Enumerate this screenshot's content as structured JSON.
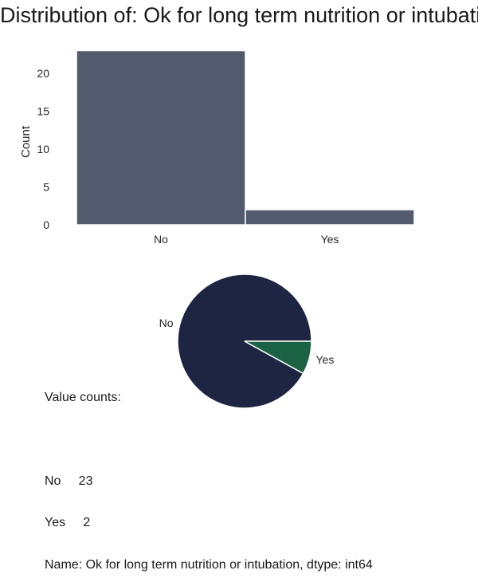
{
  "chart_data": [
    {
      "type": "bar",
      "title": "Distribution of: Ok for long term nutrition or intubation",
      "xlabel": "",
      "ylabel": "Count",
      "categories": [
        "No",
        "Yes"
      ],
      "values": [
        23,
        2
      ],
      "ylim": [
        0,
        24
      ],
      "yticks": [
        0,
        5,
        10,
        15,
        20
      ],
      "color": "#525a6e",
      "grid": false
    },
    {
      "type": "pie",
      "categories": [
        "No",
        "Yes"
      ],
      "values": [
        23,
        2
      ],
      "colors": [
        "#1d2543",
        "#1c6345"
      ]
    }
  ],
  "value_counts": {
    "heading": "Value counts:",
    "rows": [
      "No     23",
      "Yes     2"
    ],
    "footer": "Name: Ok for long term nutrition or intubation, dtype: int64"
  }
}
